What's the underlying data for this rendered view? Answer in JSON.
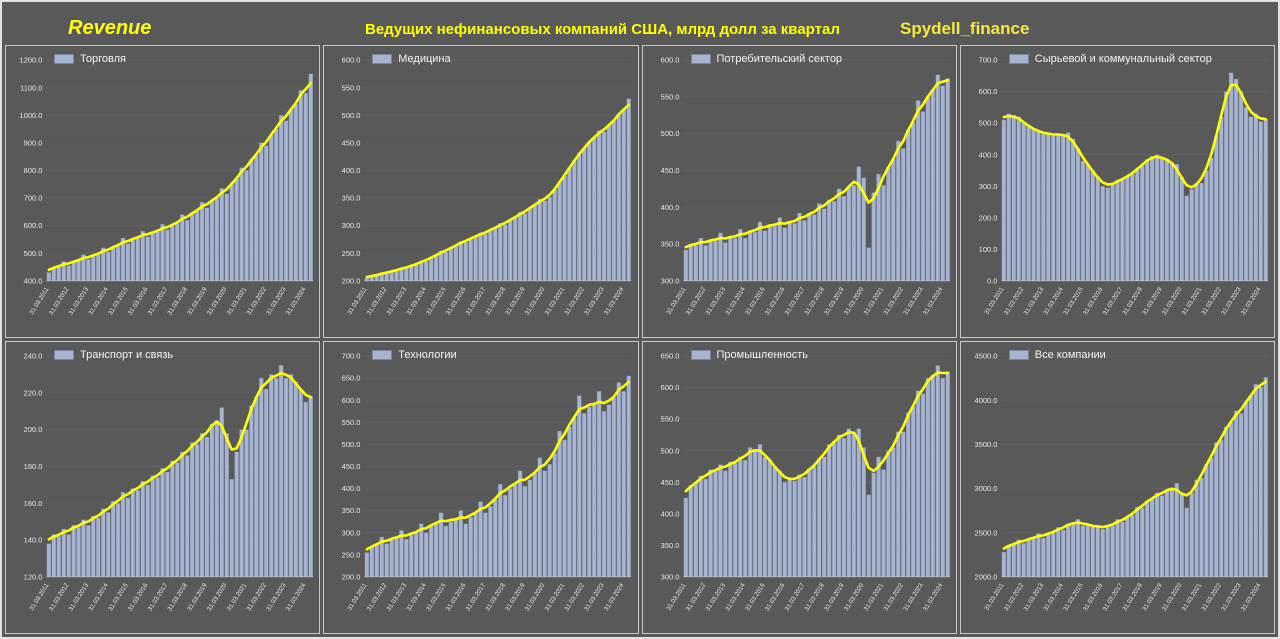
{
  "header": {
    "title": "Revenue",
    "subtitle": "Ведущих нефинансовых компаний США, млрд долл за квартал",
    "watermark": "Spydell_finance"
  },
  "colors": {
    "background": "#595959",
    "bar": "#a7b4d0",
    "bar_border": "#76849f",
    "line": "#ffff00",
    "axis_text": "#e8e8e8",
    "header_text": "#ffff00",
    "watermark_text": "#f5e93d",
    "legend_text": "#f2f2f2",
    "panel_border": "#c9c9c9"
  },
  "x_labels": [
    "31.03.2011",
    "31.03.2012",
    "31.03.2013",
    "31.03.2014",
    "31.03.2015",
    "31.03.2016",
    "31.03.2017",
    "31.03.2018",
    "31.03.2019",
    "31.03.2020",
    "31.03.2021",
    "31.03.2022",
    "31.03.2023",
    "31.03.2024"
  ],
  "chart_data": [
    {
      "type": "bar",
      "title": "Торговля",
      "ylabel": "млрд долл за квартал",
      "ylim": [
        400,
        1200
      ],
      "ytick_step": 100,
      "x_start": "31.03.2011",
      "x_freq": "quarterly",
      "values": [
        430,
        448,
        452,
        470,
        455,
        468,
        472,
        495,
        478,
        490,
        495,
        520,
        505,
        520,
        525,
        555,
        535,
        550,
        555,
        580,
        560,
        572,
        578,
        605,
        585,
        600,
        608,
        640,
        620,
        645,
        652,
        685,
        665,
        690,
        700,
        735,
        715,
        750,
        770,
        810,
        800,
        840,
        855,
        900,
        890,
        930,
        950,
        1000,
        980,
        1020,
        1040,
        1090,
        1080,
        1150
      ],
      "overlay_line": "smoothed trend (yellow)"
    },
    {
      "type": "bar",
      "title": "Медицина",
      "ylabel": "млрд долл за квартал",
      "ylim": [
        200,
        600
      ],
      "ytick_step": 50,
      "x_start": "31.03.2011",
      "x_freq": "quarterly",
      "values": [
        205,
        208,
        210,
        215,
        213,
        217,
        219,
        224,
        222,
        227,
        230,
        236,
        235,
        242,
        246,
        254,
        252,
        260,
        264,
        271,
        270,
        277,
        280,
        287,
        285,
        292,
        296,
        304,
        302,
        310,
        315,
        324,
        322,
        332,
        338,
        348,
        345,
        352,
        365,
        380,
        390,
        405,
        418,
        432,
        440,
        452,
        460,
        472,
        470,
        482,
        490,
        502,
        510,
        530
      ],
      "overlay_line": "smoothed trend (yellow)"
    },
    {
      "type": "bar",
      "title": "Потребительский сектор",
      "ylabel": "млрд долл за квартал",
      "ylim": [
        300,
        600
      ],
      "ytick_step": 50,
      "x_start": "31.03.2011",
      "x_freq": "quarterly",
      "values": [
        342,
        350,
        348,
        358,
        348,
        356,
        354,
        365,
        352,
        360,
        358,
        370,
        358,
        368,
        366,
        380,
        368,
        376,
        374,
        386,
        372,
        380,
        378,
        392,
        382,
        392,
        390,
        405,
        398,
        410,
        408,
        425,
        415,
        428,
        430,
        455,
        440,
        345,
        420,
        445,
        430,
        455,
        465,
        490,
        480,
        505,
        515,
        545,
        530,
        550,
        560,
        580,
        565,
        575
      ],
      "overlay_line": "smoothed trend (yellow)"
    },
    {
      "type": "bar",
      "title": "Сырьевой и коммунальный сектор",
      "ylabel": "млрд долл за квартал",
      "ylim": [
        0,
        700
      ],
      "ytick_step": 100,
      "x_start": "31.03.2011",
      "x_freq": "quarterly",
      "values": [
        510,
        530,
        525,
        520,
        500,
        490,
        480,
        475,
        465,
        470,
        460,
        465,
        460,
        470,
        450,
        420,
        380,
        370,
        350,
        330,
        300,
        295,
        305,
        320,
        320,
        330,
        340,
        355,
        365,
        385,
        395,
        400,
        390,
        385,
        375,
        370,
        330,
        270,
        290,
        310,
        310,
        350,
        390,
        460,
        520,
        600,
        660,
        640,
        600,
        550,
        520,
        530,
        505,
        512
      ],
      "overlay_line": "smoothed trend (yellow)"
    },
    {
      "type": "bar",
      "title": "Транспорт и связь",
      "ylabel": "млрд долл за квартал",
      "ylim": [
        120,
        240
      ],
      "ytick_step": 20,
      "x_start": "31.03.2011",
      "x_freq": "quarterly",
      "values": [
        138,
        143,
        142,
        146,
        143,
        148,
        147,
        151,
        148,
        153,
        152,
        157,
        155,
        161,
        160,
        166,
        163,
        168,
        167,
        172,
        170,
        175,
        174,
        179,
        177,
        183,
        182,
        188,
        186,
        193,
        192,
        198,
        196,
        203,
        205,
        212,
        198,
        173,
        188,
        200,
        200,
        213,
        218,
        228,
        222,
        230,
        228,
        235,
        228,
        230,
        226,
        222,
        215,
        218
      ],
      "overlay_line": "smoothed trend (yellow)"
    },
    {
      "type": "bar",
      "title": "Технологии",
      "ylabel": "млрд долл за квартал",
      "ylim": [
        200,
        700
      ],
      "ytick_step": 50,
      "x_start": "31.03.2011",
      "x_freq": "quarterly",
      "values": [
        255,
        268,
        272,
        290,
        275,
        285,
        288,
        305,
        285,
        295,
        300,
        320,
        300,
        315,
        320,
        345,
        315,
        325,
        330,
        350,
        320,
        335,
        345,
        370,
        345,
        360,
        375,
        410,
        385,
        400,
        410,
        440,
        405,
        420,
        435,
        470,
        440,
        455,
        480,
        530,
        510,
        540,
        560,
        610,
        570,
        585,
        590,
        620,
        575,
        590,
        605,
        640,
        620,
        655
      ],
      "overlay_line": "smoothed trend (yellow)"
    },
    {
      "type": "bar",
      "title": "Промышленность",
      "ylabel": "млрд долл за квартал",
      "ylim": [
        300,
        650
      ],
      "ytick_step": 50,
      "x_start": "31.03.2011",
      "x_freq": "quarterly",
      "values": [
        425,
        445,
        450,
        460,
        455,
        470,
        468,
        478,
        468,
        482,
        480,
        490,
        485,
        505,
        500,
        510,
        490,
        485,
        475,
        468,
        450,
        455,
        452,
        462,
        458,
        472,
        475,
        488,
        490,
        510,
        515,
        525,
        520,
        535,
        530,
        535,
        505,
        430,
        465,
        490,
        470,
        500,
        505,
        530,
        530,
        560,
        570,
        595,
        590,
        615,
        620,
        635,
        615,
        625
      ],
      "overlay_line": "smoothed trend (yellow)"
    },
    {
      "type": "bar",
      "title": "Все компании",
      "ylabel": "млрд долл за квартал",
      "ylim": [
        2000,
        4500
      ],
      "ytick_step": 500,
      "x_start": "31.03.2011",
      "x_freq": "quarterly",
      "values": [
        2280,
        2360,
        2370,
        2420,
        2380,
        2430,
        2440,
        2490,
        2440,
        2490,
        2500,
        2560,
        2530,
        2600,
        2610,
        2650,
        2580,
        2600,
        2570,
        2580,
        2540,
        2570,
        2580,
        2650,
        2620,
        2680,
        2700,
        2790,
        2780,
        2860,
        2890,
        2950,
        2920,
        2990,
        3000,
        3060,
        2950,
        2780,
        2950,
        3100,
        3120,
        3280,
        3350,
        3520,
        3550,
        3700,
        3750,
        3880,
        3850,
        3980,
        4050,
        4180,
        4150,
        4260
      ],
      "overlay_line": "smoothed trend (yellow)"
    }
  ]
}
